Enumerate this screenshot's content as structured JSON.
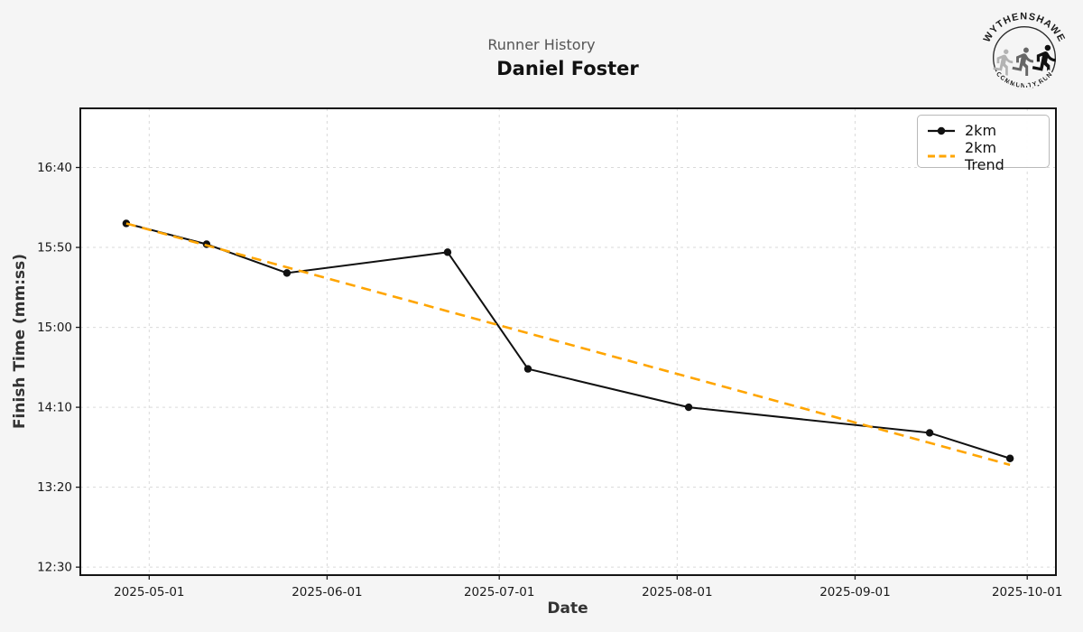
{
  "header": {
    "subtitle": "Runner History",
    "title": "Daniel Foster"
  },
  "logo": {
    "top_text": "WYTHENSHAWE",
    "bottom_text": "COMMUNITY RUN"
  },
  "legend": [
    {
      "label": "2km",
      "color": "#111111",
      "style": "solid-marker"
    },
    {
      "label": "2km Trend",
      "color": "#FFA500",
      "style": "dashed"
    }
  ],
  "chart_data": {
    "type": "line",
    "title": "Runner History",
    "subtitle": "Daniel Foster",
    "xlabel": "Date",
    "ylabel": "Finish Time (mm:ss)",
    "grid": true,
    "legend_position": "upper right",
    "xlim": [
      "2025-04-19",
      "2025-10-06"
    ],
    "ylim": [
      "12:25",
      "17:17"
    ],
    "x_ticks": [
      "2025-05-01",
      "2025-06-01",
      "2025-07-01",
      "2025-08-01",
      "2025-09-01",
      "2025-10-01"
    ],
    "y_ticks": [
      "12:30",
      "13:20",
      "14:10",
      "15:00",
      "15:50",
      "16:40"
    ],
    "series": [
      {
        "name": "2km",
        "color": "#111111",
        "style": "solid",
        "marker": "circle",
        "points": [
          {
            "date": "2025-04-27",
            "time": "16:05"
          },
          {
            "date": "2025-05-11",
            "time": "15:52"
          },
          {
            "date": "2025-05-25",
            "time": "15:34"
          },
          {
            "date": "2025-06-22",
            "time": "15:47"
          },
          {
            "date": "2025-07-06",
            "time": "14:34"
          },
          {
            "date": "2025-08-03",
            "time": "14:10"
          },
          {
            "date": "2025-09-14",
            "time": "13:54"
          },
          {
            "date": "2025-09-28",
            "time": "13:38"
          }
        ]
      },
      {
        "name": "2km Trend",
        "color": "#FFA500",
        "style": "dashed",
        "marker": "none",
        "points": [
          {
            "date": "2025-04-27",
            "time": "16:05"
          },
          {
            "date": "2025-09-28",
            "time": "13:34"
          }
        ]
      }
    ]
  }
}
